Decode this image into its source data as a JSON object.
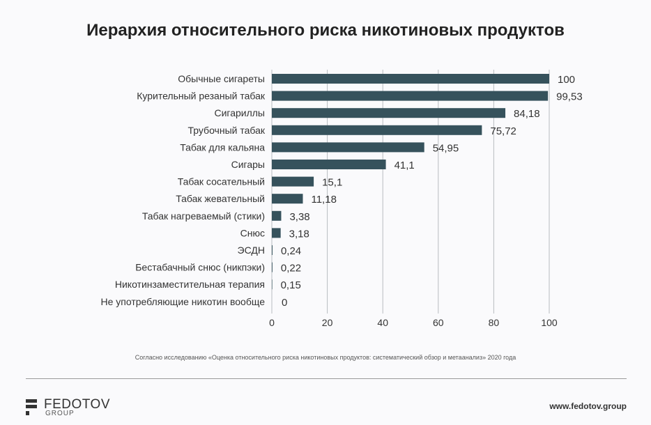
{
  "chart_data": {
    "type": "bar",
    "orientation": "horizontal",
    "title": "Иерархия относительного риска никотиновых продуктов",
    "categories": [
      "Обычные сигареты",
      "Курительный резаный табак",
      "Сигариллы",
      "Трубочный табак",
      "Табак для кальяна",
      "Сигары",
      "Табак сосательный",
      "Табак жевательный",
      "Табак нагреваемый (стики)",
      "Снюс",
      "ЭСДН",
      "Бестабачный снюс (никпэки)",
      "Никотинзаместительная терапия",
      "Не употребляющие никотин вообще"
    ],
    "values": [
      100,
      99.53,
      84.18,
      75.72,
      54.95,
      41.1,
      15.1,
      11.18,
      3.38,
      3.18,
      0.24,
      0.22,
      0.15,
      0
    ],
    "data_labels": [
      "100",
      "99,53",
      "84,18",
      "75,72",
      "54,95",
      "41,1",
      "15,1",
      "11,18",
      "3,38",
      "3,18",
      "0,24",
      "0,22",
      "0,15",
      "0"
    ],
    "xlim": [
      0,
      100
    ],
    "xticks": [
      "0",
      "20",
      "40",
      "60",
      "80",
      "100"
    ],
    "xlabel": "",
    "ylabel": "",
    "grid": "vertical",
    "bar_color": "#36525c"
  },
  "footer": {
    "source": "Согласно исследованию «Оценка относительного риска никотиновых продуктов: систематический обзор и метаанализ» 2020 года",
    "logo": {
      "name": "FEDOTOV",
      "sub": "GROUP"
    },
    "url": "www.fedotov.group"
  }
}
